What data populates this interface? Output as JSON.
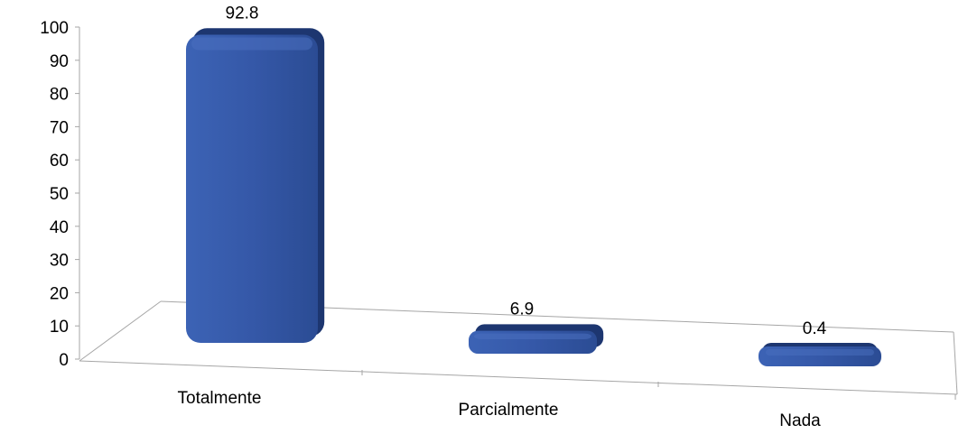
{
  "chart_data": {
    "type": "bar",
    "title": "",
    "xlabel": "",
    "ylabel": "",
    "categories": [
      "Totalmente",
      "Parcialmente",
      "Nada"
    ],
    "values": [
      92.8,
      6.9,
      0.4
    ],
    "data_labels": [
      "92.8",
      "6.9",
      "0.4"
    ],
    "ylim": [
      0,
      100
    ],
    "yticks": [
      0,
      10,
      20,
      30,
      40,
      50,
      60,
      70,
      80,
      90,
      100
    ],
    "grid": false,
    "legend": "none",
    "style": "3d-perspective",
    "colors": {
      "bar": "#2e4f9a",
      "bar_dark": "#1d3670",
      "bar_light": "#4a6fc0",
      "axis": "#a6a6a6"
    }
  }
}
